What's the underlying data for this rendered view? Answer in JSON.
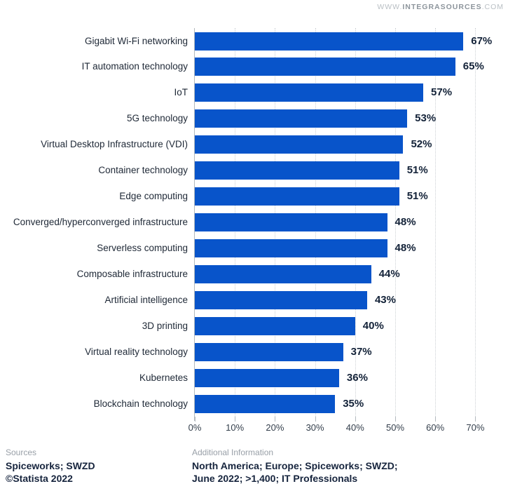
{
  "watermark": {
    "prefix": "WWW.",
    "brand": "INTEGRASOURCES",
    "suffix": ".COM"
  },
  "chart_data": {
    "type": "bar",
    "orientation": "horizontal",
    "title": "",
    "xlabel": "",
    "ylabel": "",
    "categories": [
      "Gigabit Wi-Fi networking",
      "IT automation technology",
      "IoT",
      "5G technology",
      "Virtual Desktop Infrastructure (VDI)",
      "Container technology",
      "Edge computing",
      "Converged/hyperconverged infrastructure",
      "Serverless computing",
      "Composable infrastructure",
      "Artificial intelligence",
      "3D printing",
      "Virtual reality technology",
      "Kubernetes",
      "Blockchain technology"
    ],
    "values": [
      67,
      65,
      57,
      53,
      52,
      51,
      51,
      48,
      48,
      44,
      43,
      40,
      37,
      36,
      35
    ],
    "value_labels": [
      "67%",
      "65%",
      "57%",
      "53%",
      "52%",
      "51%",
      "51%",
      "48%",
      "48%",
      "44%",
      "43%",
      "40%",
      "37%",
      "36%",
      "35%"
    ],
    "x_ticks": [
      "0%",
      "10%",
      "20%",
      "30%",
      "40%",
      "50%",
      "60%",
      "70%"
    ],
    "x_tick_values": [
      0,
      10,
      20,
      30,
      40,
      50,
      60,
      70
    ],
    "xlim": [
      0,
      74
    ],
    "grid": "dotted-vertical",
    "legend": "none",
    "bar_color": "#0854ca"
  },
  "footer": {
    "sources_label": "Sources",
    "sources_line1": "Spiceworks; SWZD",
    "sources_line2": "©Statista 2022",
    "additional_label": "Additional Information",
    "additional_line1": "North America; Europe; Spiceworks; SWZD;",
    "additional_line2": "June 2022; >1,400; IT Professionals"
  },
  "colors": {
    "bar": "#0854ca",
    "category_text": "#1e2836",
    "value_text": "#132238",
    "footer_bold_text": "#16243d",
    "muted_text": "#989fa7",
    "axis": "#b3b9be",
    "gridline": "#ccd0d4",
    "background": "#ffffff"
  }
}
